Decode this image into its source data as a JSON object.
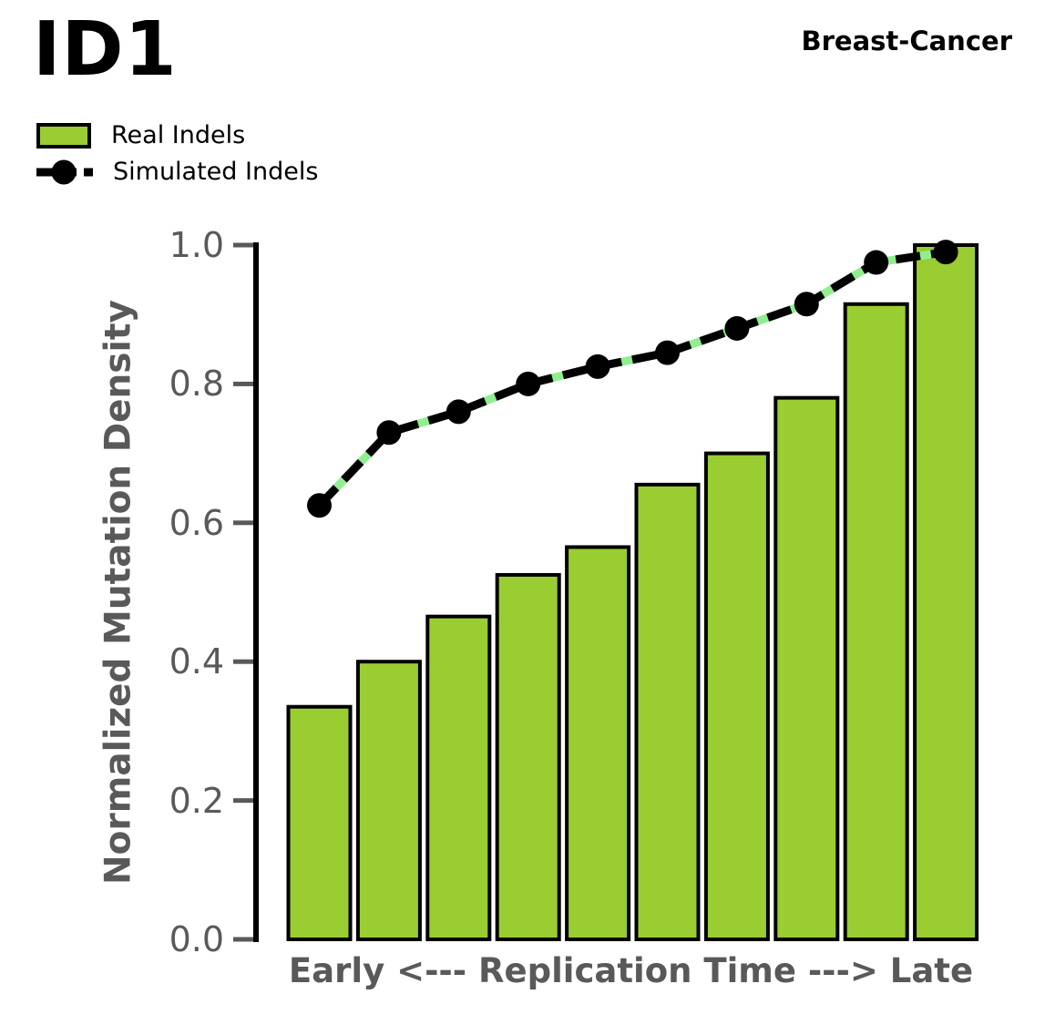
{
  "chart_data": {
    "type": "bar+line",
    "title": "ID1",
    "context_label": "Breast-Cancer",
    "xlabel": "Early <--- Replication Time ---> Late",
    "ylabel": "Normalized Mutation Density",
    "ylim": [
      0,
      1
    ],
    "yticks": [
      0,
      0.2,
      0.4,
      0.6,
      0.8,
      1.0
    ],
    "ytick_labels": [
      "0.0",
      "0.2",
      "0.4",
      "0.6",
      "0.8",
      "1.0"
    ],
    "n_bins": 10,
    "grid": false,
    "legend_position": "upper-left-outside",
    "axis_text_color": "#595959",
    "series": [
      {
        "name": "Real Indels",
        "type": "bar",
        "fill_color": "#9ACD32",
        "edge_color": "#000000",
        "values": [
          0.335,
          0.4,
          0.465,
          0.525,
          0.565,
          0.655,
          0.7,
          0.78,
          0.915,
          1.0
        ]
      },
      {
        "name": "Simulated Indels",
        "type": "line",
        "line_style": "dashed",
        "line_color": "#000000",
        "dash_gap_color": "#90EE90",
        "marker": "circle",
        "marker_color": "#000000",
        "values": [
          0.625,
          0.73,
          0.76,
          0.8,
          0.825,
          0.845,
          0.88,
          0.915,
          0.975,
          0.99
        ]
      }
    ]
  }
}
